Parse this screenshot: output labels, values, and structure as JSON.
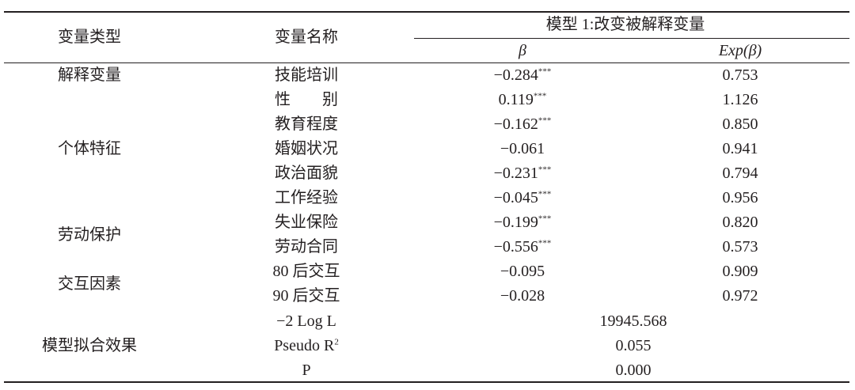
{
  "header": {
    "col_type": "变量类型",
    "col_name": "变量名称",
    "model_title": "模型 1:改变被解释变量",
    "beta": "β",
    "exp_beta": "Exp(β)"
  },
  "groups": [
    "解释变量",
    "个体特征",
    "劳动保护",
    "交互因素",
    "模型拟合效果"
  ],
  "rows": [
    {
      "name": "技能培训",
      "beta": "−0.284",
      "sig": "***",
      "exp": "0.753"
    },
    {
      "name": "性　　别",
      "beta": "0.119",
      "sig": "***",
      "exp": "1.126"
    },
    {
      "name": "教育程度",
      "beta": "−0.162",
      "sig": "***",
      "exp": "0.850"
    },
    {
      "name": "婚姻状况",
      "beta": "−0.061",
      "sig": "",
      "exp": "0.941"
    },
    {
      "name": "政治面貌",
      "beta": "−0.231",
      "sig": "***",
      "exp": "0.794"
    },
    {
      "name": "工作经验",
      "beta": "−0.045",
      "sig": "***",
      "exp": "0.956"
    },
    {
      "name": "失业保险",
      "beta": "−0.199",
      "sig": "***",
      "exp": "0.820"
    },
    {
      "name": "劳动合同",
      "beta": "−0.556",
      "sig": "***",
      "exp": "0.573"
    },
    {
      "name": "80 后交互",
      "beta": "−0.095",
      "sig": "",
      "exp": "0.909"
    },
    {
      "name": "90 后交互",
      "beta": "−0.028",
      "sig": "",
      "exp": "0.972"
    }
  ],
  "fit": [
    {
      "name": "−2 Log L",
      "value": "19945.568"
    },
    {
      "name_main": "Pseudo R",
      "name_sup": "2",
      "value": "0.055"
    },
    {
      "name": "P",
      "value": "0.000"
    }
  ]
}
